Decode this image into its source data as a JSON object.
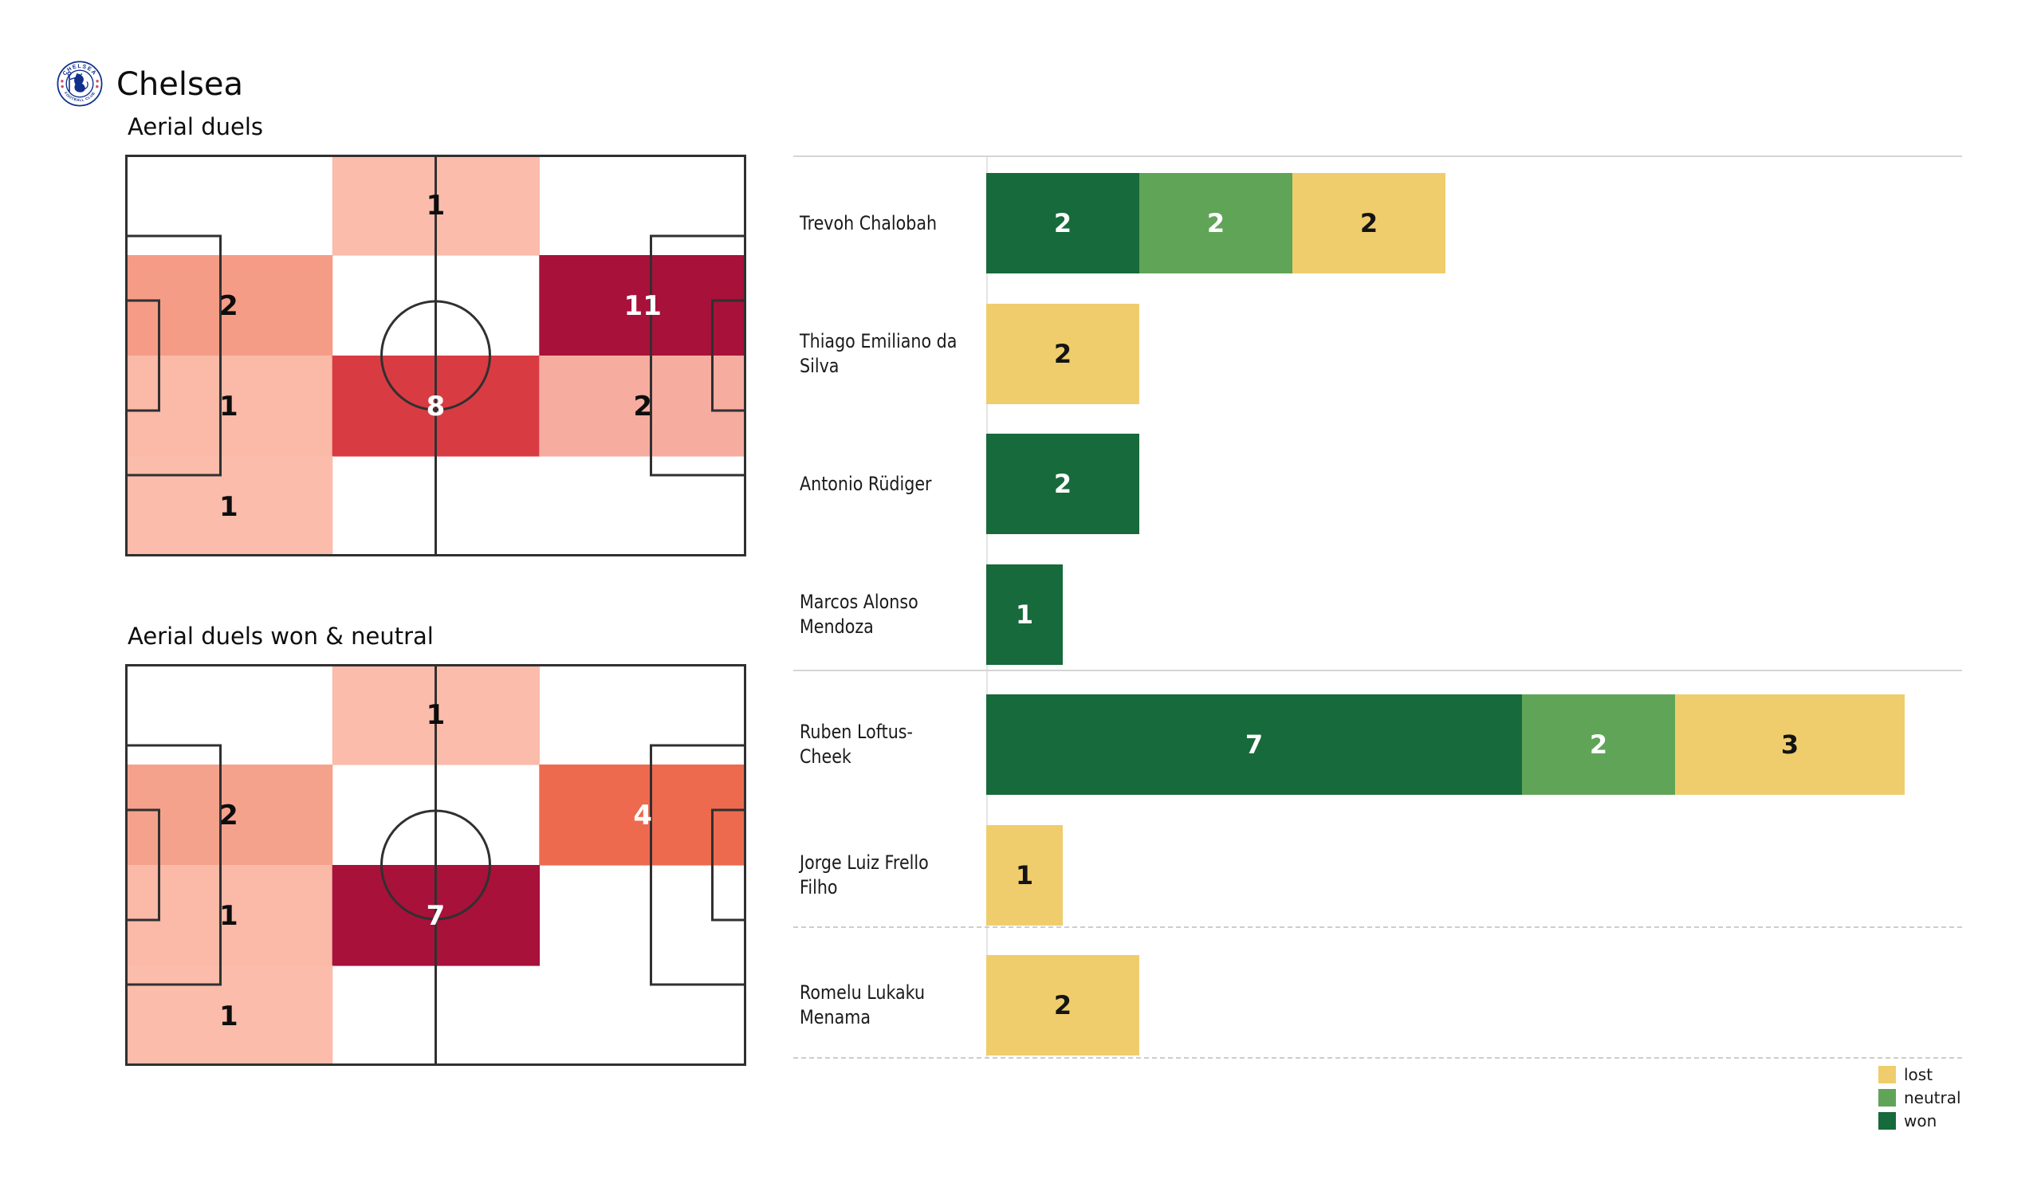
{
  "header": {
    "team_name": "Chelsea",
    "logo_text_top": "CHELSEA",
    "logo_text_bottom": "FOOTBALL CLUB",
    "logo_colors": {
      "blue": "#10308c",
      "red": "#d04a63",
      "white": "#ffffff"
    }
  },
  "pitches": [
    {
      "title": "Aerial duels",
      "rows": 4,
      "cols": 3,
      "cells": [
        {
          "row": 0,
          "col": 1,
          "value": 1,
          "bg": "#FBBCAB",
          "fg": "#0d0d0d"
        },
        {
          "row": 1,
          "col": 0,
          "value": 2,
          "bg": "#F59C87",
          "fg": "#0d0d0d"
        },
        {
          "row": 1,
          "col": 2,
          "value": 11,
          "bg": "#A8113A",
          "fg": "#ffffff"
        },
        {
          "row": 2,
          "col": 0,
          "value": 1,
          "bg": "#FBB9A8",
          "fg": "#0d0d0d"
        },
        {
          "row": 2,
          "col": 1,
          "value": 8,
          "bg": "#D93B42",
          "fg": "#ffffff"
        },
        {
          "row": 2,
          "col": 2,
          "value": 2,
          "bg": "#F7ACA0",
          "fg": "#0d0d0d"
        },
        {
          "row": 3,
          "col": 0,
          "value": 1,
          "bg": "#FBBCAB",
          "fg": "#0d0d0d"
        }
      ]
    },
    {
      "title": "Aerial duels won & neutral",
      "rows": 4,
      "cols": 3,
      "cells": [
        {
          "row": 0,
          "col": 1,
          "value": 1,
          "bg": "#FBBCAB",
          "fg": "#0d0d0d"
        },
        {
          "row": 1,
          "col": 0,
          "value": 2,
          "bg": "#F5A28D",
          "fg": "#0d0d0d"
        },
        {
          "row": 1,
          "col": 2,
          "value": 4,
          "bg": "#ED6A4E",
          "fg": "#ffffff"
        },
        {
          "row": 2,
          "col": 0,
          "value": 1,
          "bg": "#FBB9A8",
          "fg": "#0d0d0d"
        },
        {
          "row": 2,
          "col": 1,
          "value": 7,
          "bg": "#A8113A",
          "fg": "#ffffff"
        },
        {
          "row": 3,
          "col": 0,
          "value": 1,
          "bg": "#FBBCAB",
          "fg": "#0d0d0d"
        }
      ]
    }
  ],
  "bar_chart": {
    "players": [
      {
        "lines": [
          "Trevoh Chalobah"
        ],
        "won": 2,
        "neutral": 2,
        "lost": 2
      },
      {
        "lines": [
          "Thiago Emiliano da",
          "Silva"
        ],
        "won": 0,
        "neutral": 0,
        "lost": 2
      },
      {
        "lines": [
          "Antonio Rüdiger"
        ],
        "won": 2,
        "neutral": 0,
        "lost": 0
      },
      {
        "lines": [
          "Marcos  Alonso",
          "Mendoza"
        ],
        "won": 1,
        "neutral": 0,
        "lost": 0
      },
      {
        "lines": [
          "Ruben Loftus-Cheek"
        ],
        "won": 7,
        "neutral": 2,
        "lost": 3
      },
      {
        "lines": [
          "Jorge Luiz Frello Filho"
        ],
        "won": 0,
        "neutral": 0,
        "lost": 1
      },
      {
        "lines": [
          "Romelu Lukaku",
          "Menama"
        ],
        "won": 0,
        "neutral": 0,
        "lost": 2
      }
    ],
    "series_order": [
      "won",
      "neutral",
      "lost"
    ],
    "series_colors": {
      "won": "#176A3B",
      "neutral": "#60A458",
      "lost": "#EFCD6D"
    },
    "number_colors": {
      "won": "#ffffff",
      "neutral": "#ffffff",
      "lost": "#141414"
    }
  },
  "legend": {
    "items": [
      {
        "label": "lost",
        "color": "#EFCD6D"
      },
      {
        "label": "neutral",
        "color": "#60A458"
      },
      {
        "label": "won",
        "color": "#176A3B"
      }
    ]
  },
  "pitch_style": {
    "line_color": "#303030",
    "background": "#ffffff"
  },
  "chart_data": [
    {
      "type": "heatmap",
      "title": "Aerial duels",
      "rows": 4,
      "cols": 3,
      "values": [
        [
          0,
          1,
          0
        ],
        [
          2,
          0,
          11
        ],
        [
          1,
          8,
          2
        ],
        [
          1,
          0,
          0
        ]
      ],
      "colormap": "Reds",
      "canvas": "football pitch, landscape, 3x4 zone grid"
    },
    {
      "type": "heatmap",
      "title": "Aerial duels won & neutral",
      "rows": 4,
      "cols": 3,
      "values": [
        [
          0,
          1,
          0
        ],
        [
          2,
          0,
          4
        ],
        [
          1,
          7,
          0
        ],
        [
          1,
          0,
          0
        ]
      ],
      "colormap": "Reds",
      "canvas": "football pitch, landscape, 3x4 zone grid"
    },
    {
      "type": "bar",
      "stacked": true,
      "orientation": "horizontal",
      "categories": [
        "Trevoh Chalobah",
        "Thiago Emiliano da Silva",
        "Antonio Rüdiger",
        "Marcos Alonso Mendoza",
        "Ruben Loftus-Cheek",
        "Jorge Luiz Frello Filho",
        "Romelu Lukaku Menama"
      ],
      "series": [
        {
          "name": "won",
          "values": [
            2,
            0,
            2,
            1,
            7,
            0,
            0
          ]
        },
        {
          "name": "neutral",
          "values": [
            2,
            0,
            0,
            0,
            2,
            0,
            0
          ]
        },
        {
          "name": "lost",
          "values": [
            2,
            2,
            0,
            0,
            3,
            1,
            2
          ]
        }
      ],
      "xlim": [
        0,
        12.7
      ],
      "grid": false,
      "legend": [
        "lost",
        "neutral",
        "won"
      ],
      "legend_position": "lower right",
      "group_separators_after_category_index": [
        3,
        5
      ]
    }
  ]
}
